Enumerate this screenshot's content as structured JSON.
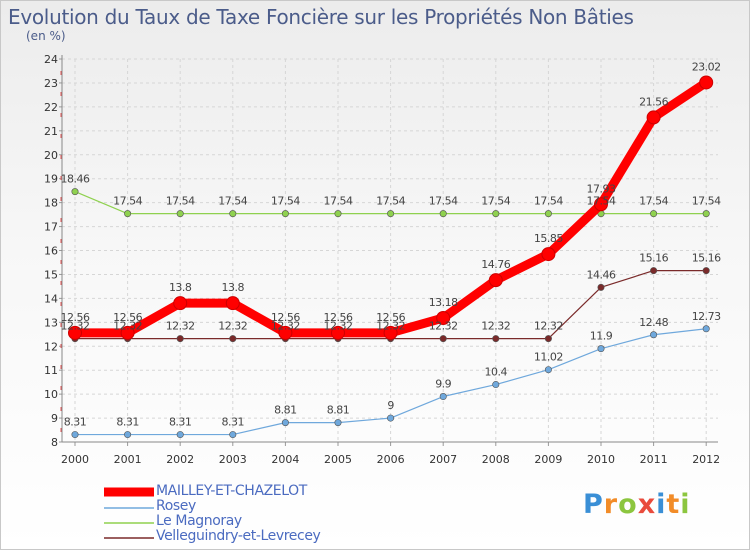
{
  "chart_data": {
    "type": "line",
    "title": "Evolution du Taux de Taxe Foncière sur les Propriétés Non Bâties",
    "unit_label": "(en %)",
    "xlabel": "",
    "ylabel": "",
    "x": [
      "2000",
      "2001",
      "2002",
      "2003",
      "2004",
      "2005",
      "2006",
      "2007",
      "2008",
      "2009",
      "2010",
      "2011",
      "2012"
    ],
    "ylim": [
      8,
      24
    ],
    "yticks": [
      "8",
      "9",
      "10",
      "11",
      "12",
      "13",
      "14",
      "15",
      "16",
      "17",
      "18",
      "19",
      "20",
      "21",
      "22",
      "23",
      "24"
    ],
    "series": [
      {
        "name": "MAILLEY-ET-CHAZELOT",
        "color": "#ff0000",
        "values": [
          12.56,
          12.56,
          13.8,
          13.8,
          12.56,
          12.56,
          12.56,
          13.18,
          14.76,
          15.85,
          17.93,
          21.56,
          23.02
        ],
        "labels": [
          "12.56",
          "12.56",
          "13.8",
          "13.8",
          "12.56",
          "12.56",
          "12.56",
          "13.18",
          "14.76",
          "15.85",
          "17.93",
          "21.56",
          "23.02"
        ]
      },
      {
        "name": "Rosey",
        "color": "#6fa8dc",
        "values": [
          8.31,
          8.31,
          8.31,
          8.31,
          8.81,
          8.81,
          9,
          9.9,
          10.4,
          11.02,
          11.9,
          12.48,
          12.73
        ],
        "labels": [
          "8.31",
          "8.31",
          "8.31",
          "8.31",
          "8.81",
          "8.81",
          "9",
          "9.9",
          "10.4",
          "11.02",
          "11.9",
          "12.48",
          "12.73"
        ]
      },
      {
        "name": "Le Magnoray",
        "color": "#8fd14f",
        "values": [
          18.46,
          17.54,
          17.54,
          17.54,
          17.54,
          17.54,
          17.54,
          17.54,
          17.54,
          17.54,
          17.54,
          17.54,
          17.54
        ],
        "labels": [
          "18.46",
          "17.54",
          "17.54",
          "17.54",
          "17.54",
          "17.54",
          "17.54",
          "17.54",
          "17.54",
          "17.54",
          "17.54",
          "17.54",
          "17.54"
        ]
      },
      {
        "name": "Velleguindry-et-Levrecey",
        "color": "#7a2a2a",
        "values": [
          12.32,
          12.32,
          12.32,
          12.32,
          12.32,
          12.32,
          12.32,
          12.32,
          12.32,
          12.32,
          14.46,
          15.16,
          15.16
        ],
        "labels": [
          "12.32",
          "12.32",
          "12.32",
          "12.32",
          "12.32",
          "12.32",
          "12.32",
          "12.32",
          "12.32",
          "12.32",
          "14.46",
          "15.16",
          "15.16"
        ]
      }
    ]
  },
  "logo": {
    "letters": [
      "P",
      "r",
      "o",
      "x",
      "i",
      "t",
      "i"
    ],
    "colors": [
      "#3a8fd6",
      "#f28c28",
      "#8cc63f",
      "#e94b3c",
      "#3a8fd6",
      "#f28c28",
      "#8cc63f"
    ]
  }
}
